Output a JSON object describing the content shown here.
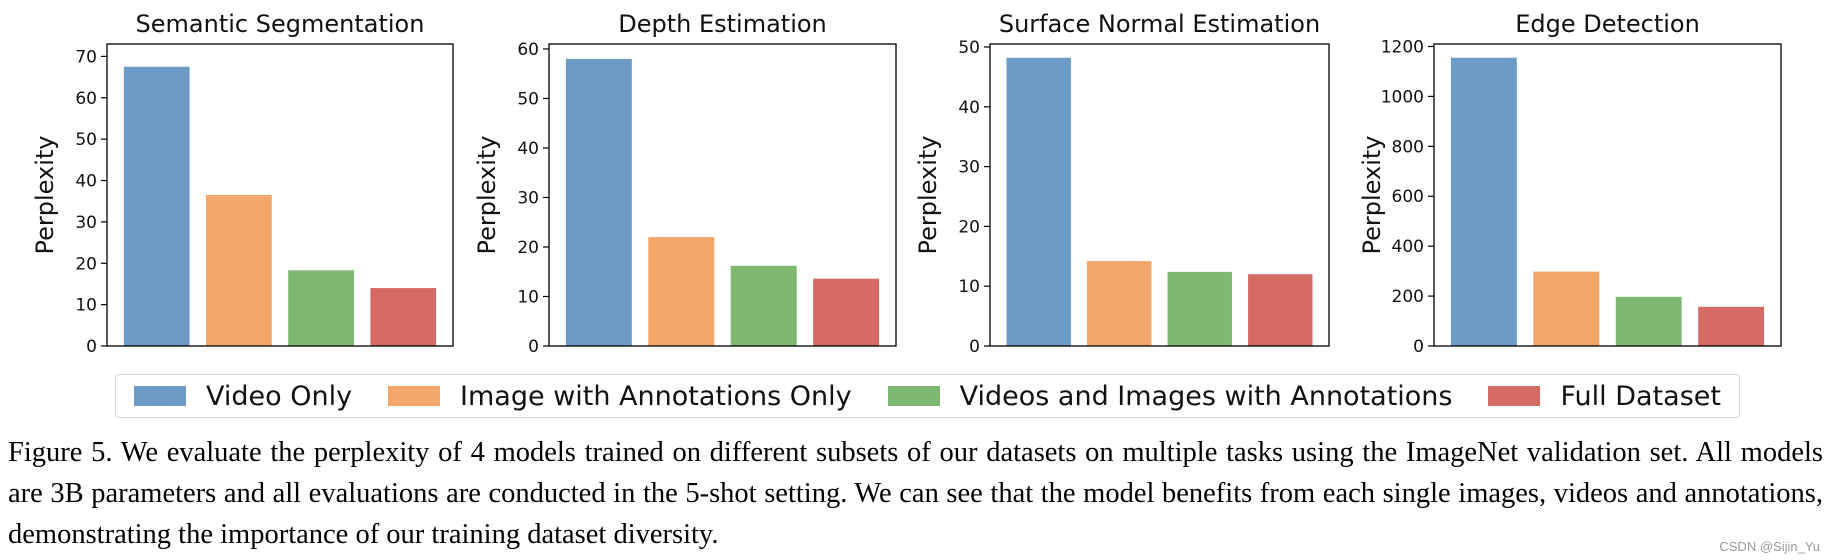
{
  "chart_data": [
    {
      "type": "bar",
      "title": "Semantic Segmentation",
      "ylabel": "Perplexity",
      "ylim": [
        0,
        73
      ],
      "yticks": [
        0,
        10,
        20,
        30,
        40,
        50,
        60,
        70
      ],
      "categories": [
        "Video Only",
        "Image with Annotations Only",
        "Videos and Images with Annotations",
        "Full Dataset"
      ],
      "values": [
        67.5,
        36.5,
        18.3,
        14.0
      ]
    },
    {
      "type": "bar",
      "title": "Depth Estimation",
      "ylabel": "Perplexity",
      "ylim": [
        0,
        61
      ],
      "yticks": [
        0,
        10,
        20,
        30,
        40,
        50,
        60
      ],
      "categories": [
        "Video Only",
        "Image with Annotations Only",
        "Videos and Images with Annotations",
        "Full Dataset"
      ],
      "values": [
        58.0,
        22.0,
        16.2,
        13.6
      ]
    },
    {
      "type": "bar",
      "title": "Surface Normal Estimation",
      "ylabel": "Perplexity",
      "ylim": [
        0,
        50.5
      ],
      "yticks": [
        0,
        10,
        20,
        30,
        40,
        50
      ],
      "categories": [
        "Video Only",
        "Image with Annotations Only",
        "Videos and Images with Annotations",
        "Full Dataset"
      ],
      "values": [
        48.2,
        14.2,
        12.4,
        12.0
      ]
    },
    {
      "type": "bar",
      "title": "Edge Detection",
      "ylabel": "Perplexity",
      "ylim": [
        0,
        1210
      ],
      "yticks": [
        0,
        200,
        400,
        600,
        800,
        1000,
        1200
      ],
      "categories": [
        "Video Only",
        "Image with Annotations Only",
        "Videos and Images with Annotations",
        "Full Dataset"
      ],
      "values": [
        1155,
        298,
        197,
        157
      ]
    }
  ],
  "legend": {
    "placement": "bottom",
    "items": [
      {
        "label": "Video Only",
        "color": "#6d9bc8"
      },
      {
        "label": "Image with Annotations Only",
        "color": "#f3a66a"
      },
      {
        "label": "Videos and Images with Annotations",
        "color": "#7fb870"
      },
      {
        "label": "Full Dataset",
        "color": "#d56b63"
      }
    ]
  },
  "caption": "Figure 5. We evaluate the perplexity of 4 models trained on different subsets of our datasets on multiple tasks using the ImageNet validation set. All models are 3B parameters and all evaluations are conducted in the 5-shot setting. We can see that the model benefits from each single images, videos and annotations, demonstrating the importance of our training dataset diversity.",
  "watermark": "CSDN @Sijin_Yu"
}
